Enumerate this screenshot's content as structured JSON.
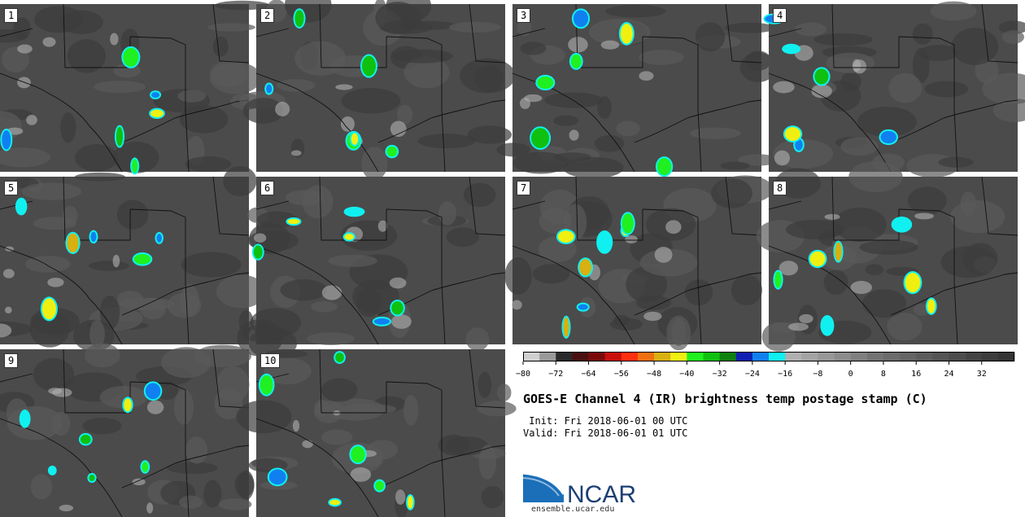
{
  "panels": [
    {
      "label": "1"
    },
    {
      "label": "2"
    },
    {
      "label": "3"
    },
    {
      "label": "4"
    },
    {
      "label": "5"
    },
    {
      "label": "6"
    },
    {
      "label": "7"
    },
    {
      "label": "8"
    },
    {
      "label": "9"
    },
    {
      "label": "10"
    }
  ],
  "chart_data": {
    "type": "heatmap",
    "title": "GOES-E Channel 4 (IR) brightness temp postage stamp (C)",
    "init_line": " Init: Fri 2018-06-01 00 UTC",
    "valid_line": "Valid: Fri 2018-06-01 01 UTC",
    "colorbar": {
      "min": -80,
      "max": 40,
      "step": 4,
      "tick_labels": [
        "−80",
        "−72",
        "−64",
        "−56",
        "−48",
        "−40",
        "−32",
        "−24",
        "−16",
        "−8",
        "0",
        "8",
        "16",
        "24",
        "32"
      ],
      "tick_values": [
        -80,
        -72,
        -64,
        -56,
        -48,
        -40,
        -32,
        -24,
        -16,
        -8,
        0,
        8,
        16,
        24,
        32
      ],
      "colors": [
        "#d0d0d0",
        "#9a9a9a",
        "#2a2a2a",
        "#4a1010",
        "#7a0a0a",
        "#c8100c",
        "#ff3010",
        "#f07010",
        "#d8b010",
        "#f0f010",
        "#20f020",
        "#10c010",
        "#108010",
        "#1020b0",
        "#1080f0",
        "#10f0f0",
        "#b0b0b0",
        "#a4a4a4",
        "#989898",
        "#8c8c8c",
        "#808080",
        "#747474",
        "#6c6c6c",
        "#646464",
        "#5c5c5c",
        "#545454",
        "#4c4c4c",
        "#444444",
        "#3c3c3c",
        "#343434"
      ]
    }
  },
  "logo": {
    "text": "NCAR",
    "url": "ensemble.ucar.edu"
  }
}
